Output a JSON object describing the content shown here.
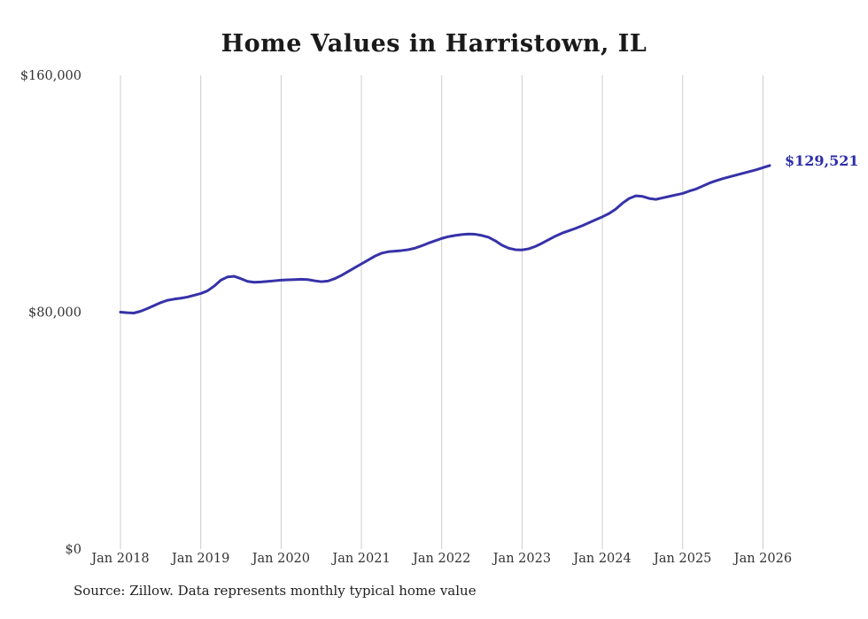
{
  "title": "Home Values in Harristown, IL",
  "end_label": "$129,521",
  "source_note": "Source: Zillow. Data represents monthly typical home value",
  "colors": {
    "line": "#3632a8",
    "end_label": "#2d2daa",
    "grid": "#cccccc",
    "text": "#333333",
    "title": "#1a1a1a"
  },
  "chart_data": {
    "type": "line",
    "title": "Home Values in Harristown, IL",
    "xlabel": "",
    "ylabel": "",
    "x_start": "2018-01",
    "x_end": "2026-02",
    "x_tick_labels": [
      "Jan 2018",
      "Jan 2019",
      "Jan 2020",
      "Jan 2021",
      "Jan 2022",
      "Jan 2023",
      "Jan 2024",
      "Jan 2025",
      "Jan 2026"
    ],
    "x_tick_month_indices": [
      0,
      12,
      24,
      36,
      48,
      60,
      72,
      84,
      96
    ],
    "y_ticks": [
      0,
      80000,
      160000
    ],
    "y_tick_labels": [
      "$0",
      "$80,000",
      "$160,000"
    ],
    "ylim": [
      0,
      160000
    ],
    "grid": "vertical-only",
    "legend": "none",
    "annotation": {
      "text": "$129,521",
      "value": 129521
    },
    "series": [
      {
        "name": "Typical home value",
        "values": [
          80000,
          79800,
          79700,
          80300,
          81200,
          82200,
          83200,
          84000,
          84400,
          84700,
          85100,
          85700,
          86300,
          87200,
          88800,
          90800,
          91900,
          92100,
          91300,
          90400,
          90100,
          90200,
          90400,
          90600,
          90800,
          90900,
          91000,
          91100,
          91000,
          90600,
          90300,
          90500,
          91300,
          92400,
          93700,
          95000,
          96300,
          97600,
          98900,
          99900,
          100400,
          100600,
          100800,
          101100,
          101600,
          102400,
          103300,
          104100,
          104900,
          105500,
          105900,
          106200,
          106400,
          106300,
          105900,
          105300,
          104100,
          102600,
          101600,
          101100,
          101000,
          101400,
          102200,
          103300,
          104500,
          105700,
          106700,
          107500,
          108300,
          109200,
          110200,
          111200,
          112200,
          113300,
          114800,
          116800,
          118400,
          119300,
          119100,
          118400,
          118100,
          118600,
          119100,
          119600,
          120100,
          120900,
          121600,
          122600,
          123600,
          124400,
          125100,
          125700,
          126300,
          126900,
          127500,
          128100,
          128800,
          129521
        ]
      }
    ]
  }
}
